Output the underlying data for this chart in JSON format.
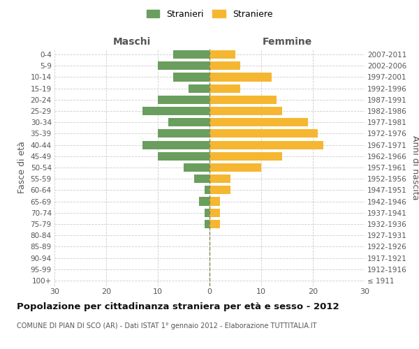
{
  "age_groups": [
    "100+",
    "95-99",
    "90-94",
    "85-89",
    "80-84",
    "75-79",
    "70-74",
    "65-69",
    "60-64",
    "55-59",
    "50-54",
    "45-49",
    "40-44",
    "35-39",
    "30-34",
    "25-29",
    "20-24",
    "15-19",
    "10-14",
    "5-9",
    "0-4"
  ],
  "birth_years": [
    "≤ 1911",
    "1912-1916",
    "1917-1921",
    "1922-1926",
    "1927-1931",
    "1932-1936",
    "1937-1941",
    "1942-1946",
    "1947-1951",
    "1952-1956",
    "1957-1961",
    "1962-1966",
    "1967-1971",
    "1972-1976",
    "1977-1981",
    "1982-1986",
    "1987-1991",
    "1992-1996",
    "1997-2001",
    "2002-2006",
    "2007-2011"
  ],
  "males": [
    0,
    0,
    0,
    0,
    0,
    1,
    1,
    2,
    1,
    3,
    5,
    10,
    13,
    10,
    8,
    13,
    10,
    4,
    7,
    10,
    7
  ],
  "females": [
    0,
    0,
    0,
    0,
    0,
    2,
    2,
    2,
    4,
    4,
    10,
    14,
    22,
    21,
    19,
    14,
    13,
    6,
    12,
    6,
    5
  ],
  "male_color": "#6a9e5e",
  "female_color": "#f5b731",
  "background_color": "#ffffff",
  "grid_color": "#cccccc",
  "center_line_color": "#888855",
  "title": "Popolazione per cittadinanza straniera per età e sesso - 2012",
  "subtitle": "COMUNE DI PIAN DI SCO (AR) - Dati ISTAT 1° gennaio 2012 - Elaborazione TUTTITALIA.IT",
  "ylabel_left": "Fasce di età",
  "ylabel_right": "Anni di nascita",
  "header_left": "Maschi",
  "header_right": "Femmine",
  "legend_stranieri": "Stranieri",
  "legend_straniere": "Straniere",
  "xlim": 30,
  "figwidth": 6.0,
  "figheight": 5.0,
  "dpi": 100
}
